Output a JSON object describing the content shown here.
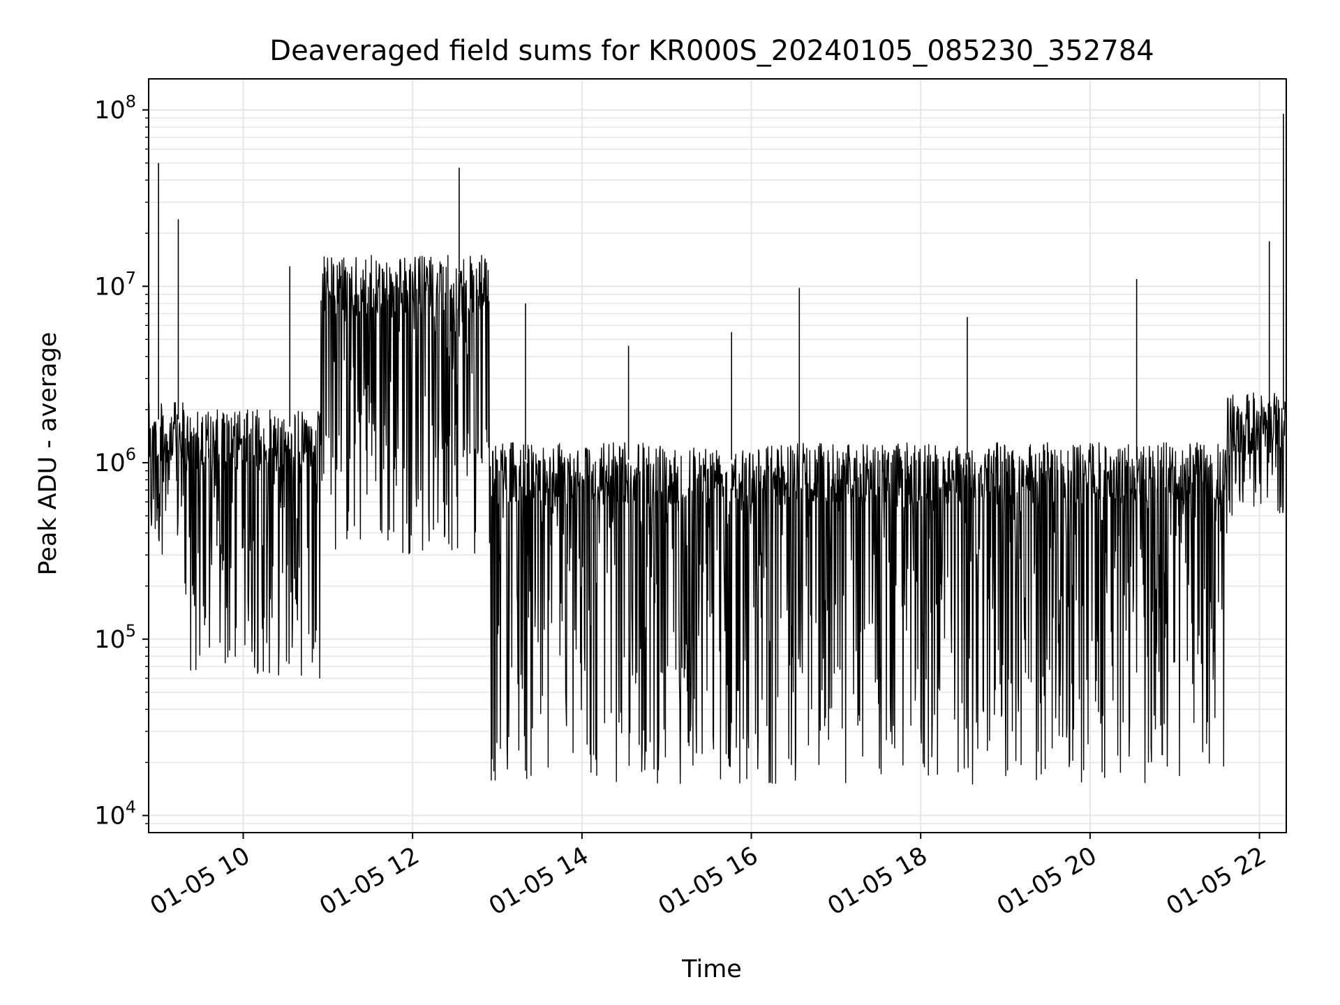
{
  "chart_data": {
    "type": "line",
    "title": "Deaveraged field sums for KR000S_20240105_085230_352784",
    "xlabel": "Time",
    "ylabel": "Peak ADU - average",
    "yscale": "log",
    "ylim": [
      8000,
      150000000
    ],
    "xlim": [
      "01-05 08:53",
      "01-05 22:19"
    ],
    "grid": true,
    "line_color": "#000000",
    "grid_color": "#e6e6e6",
    "x_ticks": [
      "01-05 10",
      "01-05 12",
      "01-05 14",
      "01-05 16",
      "01-05 18",
      "01-05 20",
      "01-05 22"
    ],
    "x_tick_hours": [
      10,
      12,
      14,
      16,
      18,
      20,
      22
    ],
    "y_ticks": [
      {
        "value": 10000,
        "base": "10",
        "exp": "4"
      },
      {
        "value": 100000,
        "base": "10",
        "exp": "5"
      },
      {
        "value": 1000000,
        "base": "10",
        "exp": "6"
      },
      {
        "value": 10000000,
        "base": "10",
        "exp": "7"
      },
      {
        "value": 100000000,
        "base": "10",
        "exp": "8"
      }
    ],
    "segments": [
      {
        "start": "08:53",
        "end": "09:18",
        "low": 300000,
        "high": 2200000
      },
      {
        "start": "09:18",
        "end": "10:55",
        "low": 60000,
        "high": 2000000
      },
      {
        "start": "10:55",
        "end": "12:55",
        "low": 300000,
        "high": 15000000
      },
      {
        "start": "12:55",
        "end": "21:37",
        "low": 15000,
        "high": 1300000
      },
      {
        "start": "21:37",
        "end": "22:19",
        "low": 500000,
        "high": 2500000
      }
    ],
    "spikes": [
      {
        "time": "09:00",
        "value": 50000000
      },
      {
        "time": "09:14",
        "value": 24000000
      },
      {
        "time": "10:33",
        "value": 13000000
      },
      {
        "time": "12:33",
        "value": 47000000
      },
      {
        "time": "12:41",
        "value": 10000000
      },
      {
        "time": "13:20",
        "value": 8000000
      },
      {
        "time": "14:33",
        "value": 4600000
      },
      {
        "time": "15:46",
        "value": 5500000
      },
      {
        "time": "16:34",
        "value": 9800000
      },
      {
        "time": "18:33",
        "value": 6700000
      },
      {
        "time": "20:33",
        "value": 11000000
      },
      {
        "time": "22:07",
        "value": 18000000
      },
      {
        "time": "22:17",
        "value": 95000000
      }
    ]
  }
}
